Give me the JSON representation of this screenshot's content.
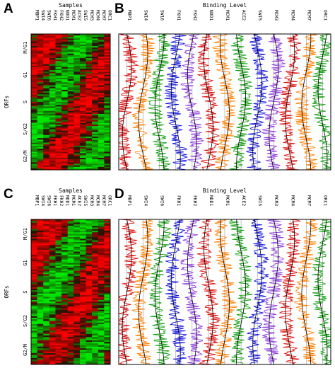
{
  "figure": {
    "panels": [
      {
        "letter": "A",
        "type": "heatmap",
        "title": "Samples",
        "ylabel": "ORFs",
        "columns": [
          "MBP1",
          "SWI4",
          "SWI6",
          "FKH1",
          "FKH2",
          "NDD1",
          "MCM1",
          "ACE2",
          "SWI5",
          "MCM3",
          "MCM4",
          "MCM7",
          "ORC1"
        ],
        "phases": [
          "M/G1",
          "G1",
          "S",
          "S/G2",
          "G2/M"
        ],
        "colors": {
          "high": "#e00000",
          "low": "#10d000",
          "mid": "#201000"
        }
      },
      {
        "letter": "B",
        "type": "binding-profile",
        "title": "Binding Level",
        "columns": [
          "MBP1",
          "SWI4",
          "SW16",
          "FKH1",
          "FKH2",
          "NDD1",
          "MCM1",
          "ACE2",
          "SWI5",
          "MCM3",
          "MCM4",
          "MCM7",
          "ORC1"
        ],
        "colors": [
          "#e01010",
          "#ff8000",
          "#10a010",
          "#1010e0",
          "#9040e0",
          "#e01010",
          "#ff8000",
          "#10a010",
          "#1010e0",
          "#9040e0",
          "#e01010",
          "#ff8000",
          "#10a010"
        ]
      },
      {
        "letter": "C",
        "type": "heatmap",
        "title": "Samples",
        "ylabel": "ORFs",
        "columns": [
          "MBP1",
          "SWI4",
          "SWI6",
          "FKH1",
          "FKH2",
          "NDD1",
          "MCM1",
          "ACE2",
          "SWI5",
          "MCM3",
          "MCM4",
          "MCM7",
          "ORC1"
        ],
        "phases": [
          "M/G1",
          "G1",
          "S",
          "S/G2",
          "G2/M"
        ],
        "colors": {
          "high": "#e00000",
          "low": "#10d000",
          "mid": "#201000"
        }
      },
      {
        "letter": "D",
        "type": "binding-profile",
        "title": "Binding Level",
        "columns": [
          "MBP1",
          "SWI4",
          "SWI6",
          "FKH1",
          "FKH2",
          "NDD1",
          "MCM1",
          "ACE2",
          "SWI5",
          "MCM3",
          "MCM4",
          "MCM7",
          "ORC1"
        ],
        "colors": [
          "#e01010",
          "#ff8000",
          "#10a010",
          "#1010e0",
          "#9040e0",
          "#e01010",
          "#ff8000",
          "#10a010",
          "#1010e0",
          "#9040e0",
          "#e01010",
          "#ff8000",
          "#10a010"
        ]
      }
    ]
  }
}
